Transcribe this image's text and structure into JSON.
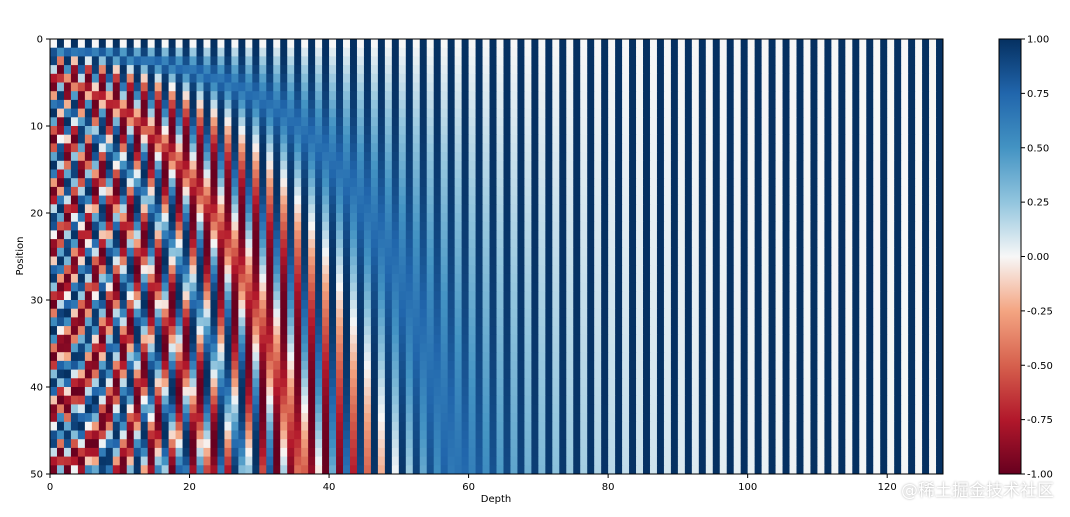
{
  "chart_data": {
    "type": "heatmap",
    "title": "",
    "xlabel": "Depth",
    "ylabel": "Position",
    "x_range": [
      0,
      128
    ],
    "y_range": [
      0,
      50
    ],
    "y_inverted": true,
    "x_ticks": [
      "0",
      "20",
      "40",
      "60",
      "80",
      "100",
      "120"
    ],
    "y_ticks": [
      "0",
      "10",
      "20",
      "30",
      "40",
      "50"
    ],
    "colorbar": {
      "colormap": "RdBu",
      "vmin": -1.0,
      "vmax": 1.0,
      "ticks": [
        "1.00",
        "0.75",
        "0.50",
        "0.25",
        "0.00",
        "-0.25",
        "-0.50",
        "-0.75",
        "-1.00"
      ]
    },
    "data_formula": "positional encoding: even depth i -> sin(pos / 10000^(i/128)), odd depth i -> cos(pos / 10000^((i-1)/128))",
    "colors": {
      "low": "#67001f",
      "mid": "#f7f7f7",
      "high": "#053061"
    }
  },
  "watermark": "@稀土掘金技术社区"
}
